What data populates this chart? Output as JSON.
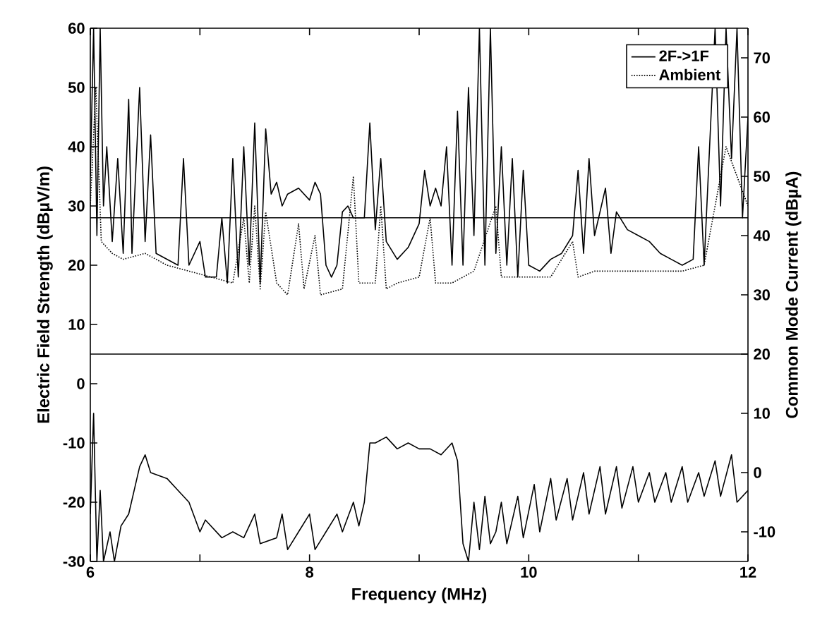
{
  "chart_data": {
    "type": "line",
    "xlabel": "Frequency (MHz)",
    "ylabel": "Electric Field Strength (dBµV/m)",
    "y2label": "Common Mode Current (dBµA)",
    "xlim": [
      6,
      12
    ],
    "xticks": [
      6,
      {
        "value": 7,
        "label": null
      },
      8,
      {
        "value": 9,
        "label": null
      },
      10,
      {
        "value": 11,
        "label": null
      },
      12
    ],
    "ylim": [
      -30,
      60
    ],
    "yticks": [
      -30,
      -20,
      -10,
      0,
      10,
      20,
      30,
      40,
      50,
      60
    ],
    "y2lim": [
      -15,
      75
    ],
    "y2ticks": [
      -10,
      0,
      10,
      20,
      30,
      40,
      50,
      60,
      70
    ],
    "legend": "top right",
    "ref_lines": [
      {
        "axis": "y",
        "value": 28,
        "color": "#000000"
      },
      {
        "axis": "y",
        "value": 5,
        "color": "#000000"
      }
    ],
    "series": [
      {
        "name": "2F->1F",
        "color": "#000000",
        "line_style": "solid",
        "x": [
          6.0,
          6.03,
          6.06,
          6.09,
          6.12,
          6.15,
          6.2,
          6.25,
          6.3,
          6.35,
          6.38,
          6.45,
          6.5,
          6.55,
          6.6,
          6.7,
          6.8,
          6.85,
          6.9,
          7.0,
          7.05,
          7.15,
          7.2,
          7.25,
          7.3,
          7.35,
          7.4,
          7.45,
          7.5,
          7.55,
          7.6,
          7.65,
          7.7,
          7.75,
          7.8,
          7.9,
          8.0,
          8.05,
          8.1,
          8.15,
          8.2,
          8.25,
          8.3,
          8.35,
          8.4,
          8.5,
          8.55,
          8.6,
          8.65,
          8.7,
          8.8,
          8.9,
          9.0,
          9.05,
          9.1,
          9.15,
          9.2,
          9.25,
          9.3,
          9.35,
          9.4,
          9.45,
          9.5,
          9.55,
          9.6,
          9.65,
          9.7,
          9.75,
          9.8,
          9.85,
          9.9,
          9.95,
          10.0,
          10.1,
          10.2,
          10.3,
          10.4,
          10.45,
          10.5,
          10.55,
          10.6,
          10.7,
          10.75,
          10.8,
          10.9,
          11.0,
          11.1,
          11.2,
          11.3,
          11.4,
          11.5,
          11.55,
          11.6,
          11.7,
          11.75,
          11.8,
          11.85,
          11.9,
          11.95,
          12.0
        ],
        "values": [
          35,
          60,
          25,
          60,
          30,
          40,
          24,
          38,
          22,
          48,
          22,
          50,
          24,
          42,
          22,
          21,
          20,
          38,
          20,
          24,
          18,
          18,
          28,
          17,
          38,
          18,
          40,
          20,
          44,
          17,
          43,
          32,
          34,
          30,
          32,
          33,
          31,
          34,
          32,
          20,
          18,
          20,
          29,
          30,
          28,
          28,
          44,
          26,
          38,
          24,
          21,
          23,
          27,
          36,
          30,
          33,
          30,
          40,
          20,
          46,
          20,
          50,
          25,
          60,
          20,
          60,
          22,
          40,
          20,
          38,
          18,
          36,
          20,
          19,
          21,
          22,
          25,
          36,
          22,
          38,
          25,
          33,
          22,
          29,
          26,
          25,
          24,
          22,
          21,
          20,
          21,
          40,
          20,
          60,
          30,
          60,
          38,
          60,
          28,
          45
        ]
      },
      {
        "name": "Ambient",
        "color": "#000000",
        "line_style": "dotted",
        "x": [
          6.0,
          6.05,
          6.1,
          6.2,
          6.3,
          6.5,
          6.7,
          6.9,
          7.1,
          7.3,
          7.4,
          7.45,
          7.5,
          7.55,
          7.6,
          7.7,
          7.8,
          7.9,
          7.95,
          8.05,
          8.1,
          8.3,
          8.4,
          8.45,
          8.6,
          8.65,
          8.7,
          8.8,
          9.0,
          9.1,
          9.15,
          9.3,
          9.5,
          9.7,
          9.75,
          10.0,
          10.2,
          10.4,
          10.45,
          10.6,
          10.8,
          11.0,
          11.2,
          11.4,
          11.6,
          11.8,
          12.0
        ],
        "values": [
          30,
          50,
          24,
          22,
          21,
          22,
          20,
          19,
          18,
          17,
          28,
          17,
          30,
          16,
          29,
          17,
          15,
          27,
          16,
          25,
          15,
          16,
          35,
          17,
          17,
          30,
          16,
          17,
          18,
          28,
          17,
          17,
          19,
          30,
          18,
          18,
          18,
          24,
          18,
          19,
          19,
          19,
          19,
          19,
          20,
          40,
          30
        ]
      },
      {
        "color": "#000000",
        "line_style": "solid",
        "axis": "y2",
        "x": [
          6.0,
          6.03,
          6.06,
          6.09,
          6.12,
          6.18,
          6.22,
          6.28,
          6.35,
          6.45,
          6.5,
          6.55,
          6.7,
          6.8,
          6.9,
          7.0,
          7.05,
          7.2,
          7.3,
          7.4,
          7.5,
          7.55,
          7.7,
          7.75,
          7.8,
          7.9,
          8.0,
          8.05,
          8.15,
          8.25,
          8.3,
          8.4,
          8.45,
          8.5,
          8.55,
          8.6,
          8.7,
          8.8,
          8.9,
          9.0,
          9.1,
          9.2,
          9.3,
          9.35,
          9.4,
          9.45,
          9.5,
          9.55,
          9.6,
          9.65,
          9.7,
          9.75,
          9.8,
          9.9,
          9.95,
          10.05,
          10.1,
          10.2,
          10.25,
          10.35,
          10.4,
          10.5,
          10.55,
          10.65,
          10.7,
          10.8,
          10.85,
          10.95,
          11.0,
          11.1,
          11.15,
          11.25,
          11.3,
          11.4,
          11.45,
          11.55,
          11.6,
          11.7,
          11.75,
          11.85,
          11.9,
          12.0
        ],
        "values": [
          -7,
          10,
          -15,
          -3,
          -15,
          -10,
          -15,
          -9,
          -7,
          1,
          3,
          0,
          -1,
          -3,
          -5,
          -10,
          -8,
          -11,
          -10,
          -11,
          -7,
          -12,
          -11,
          -7,
          -13,
          -10,
          -7,
          -13,
          -10,
          -7,
          -10,
          -5,
          -9,
          -5,
          5,
          5,
          6,
          4,
          5,
          4,
          4,
          3,
          5,
          2,
          -12,
          -15,
          -5,
          -13,
          -4,
          -12,
          -10,
          -5,
          -12,
          -4,
          -11,
          -2,
          -10,
          -1,
          -8,
          -1,
          -8,
          0,
          -7,
          1,
          -7,
          1,
          -6,
          1,
          -5,
          0,
          -5,
          0,
          -5,
          1,
          -5,
          0,
          -4,
          2,
          -4,
          3,
          -5,
          -3
        ]
      }
    ]
  }
}
